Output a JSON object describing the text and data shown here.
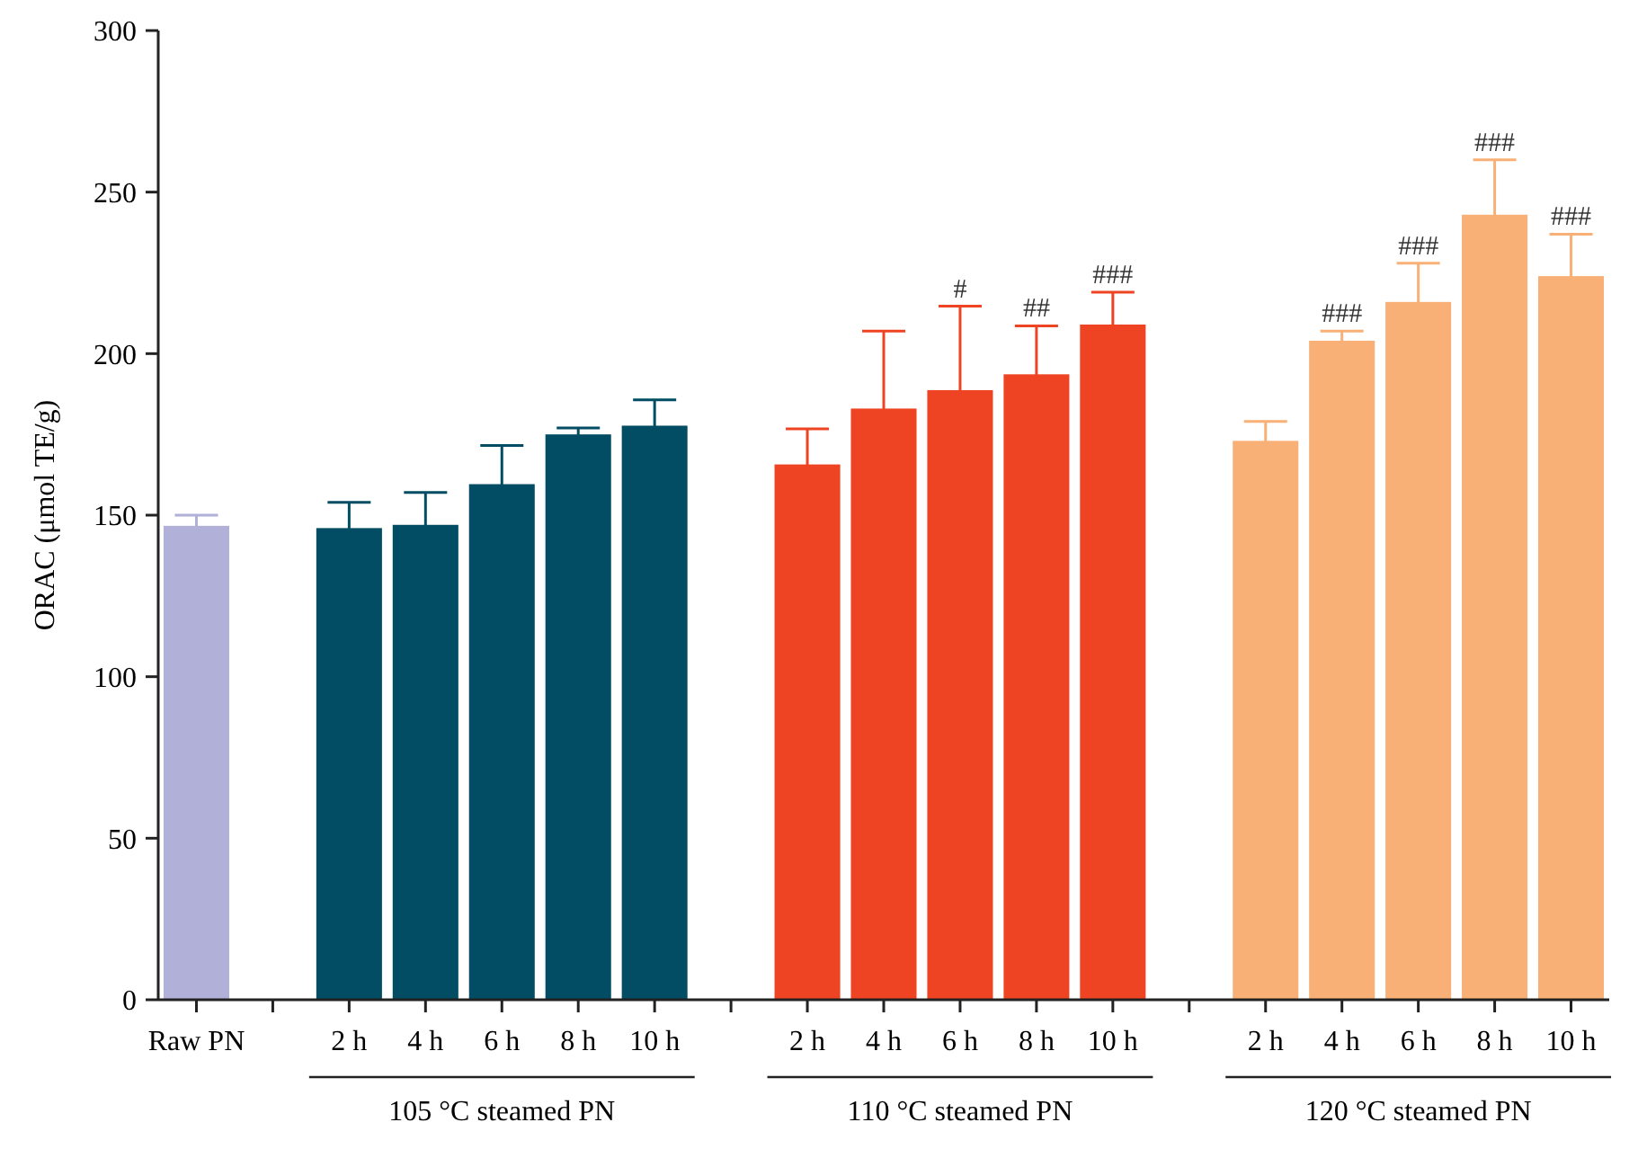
{
  "chart_data": {
    "type": "bar",
    "ylabel": "ORAC (μmol TE/g)",
    "categories": [
      "Raw PN",
      null,
      "2 h",
      "4 h",
      "6 h",
      "8 h",
      "10 h",
      null,
      "2 h",
      "4 h",
      "6 h",
      "8 h",
      "10 h",
      null,
      "2 h",
      "4 h",
      "6 h",
      "8 h",
      "10 h"
    ],
    "annotations": [
      "105 °C steamed PN",
      "110 °C steamed PN",
      "120 °C steamed PN"
    ],
    "series": [
      {
        "color": "#b0b0d8",
        "values": [
          146.7,
          null,
          null,
          null,
          null,
          null,
          null,
          null,
          null,
          null,
          null,
          null,
          null,
          null,
          null,
          null,
          null,
          null,
          null
        ],
        "errors": [
          3.3,
          null,
          null,
          null,
          null,
          null,
          null,
          null,
          null,
          null,
          null,
          null,
          null,
          null,
          null,
          null,
          null,
          null,
          null
        ]
      },
      {
        "color": "#024d63",
        "values": [
          null,
          null,
          146,
          147,
          159.6,
          175,
          177.7,
          null,
          null,
          null,
          null,
          null,
          null,
          null,
          null,
          null,
          null,
          null,
          null
        ],
        "errors": [
          null,
          null,
          8,
          10,
          12,
          2,
          8,
          null,
          null,
          null,
          null,
          null,
          null,
          null,
          null,
          null,
          null,
          null,
          null
        ]
      },
      {
        "color": "#ee4423",
        "values": [
          null,
          null,
          null,
          null,
          null,
          null,
          null,
          null,
          165.7,
          183,
          188.7,
          193.6,
          209,
          null,
          null,
          null,
          null,
          null,
          null
        ],
        "errors": [
          null,
          null,
          null,
          null,
          null,
          null,
          null,
          null,
          11,
          24,
          26,
          15,
          10,
          null,
          null,
          null,
          null,
          null,
          null
        ],
        "value_labels": [
          null,
          null,
          null,
          null,
          null,
          null,
          null,
          null,
          null,
          null,
          "#",
          "##",
          "###",
          null,
          null,
          null,
          null,
          null,
          null
        ]
      },
      {
        "color": "#f8b077",
        "values": [
          null,
          null,
          null,
          null,
          null,
          null,
          null,
          null,
          null,
          null,
          null,
          null,
          null,
          null,
          173,
          204,
          216,
          243,
          224
        ],
        "errors": [
          null,
          null,
          null,
          null,
          null,
          null,
          null,
          null,
          null,
          null,
          null,
          null,
          null,
          null,
          6,
          3,
          12,
          17,
          13
        ],
        "value_labels": [
          null,
          null,
          null,
          null,
          null,
          null,
          null,
          null,
          null,
          null,
          null,
          null,
          null,
          null,
          null,
          "###",
          "###",
          "###",
          "###"
        ]
      }
    ],
    "ylim": [
      0,
      300
    ],
    "yticks": [
      0,
      50,
      100,
      150,
      200,
      250,
      300
    ],
    "grid": false
  }
}
